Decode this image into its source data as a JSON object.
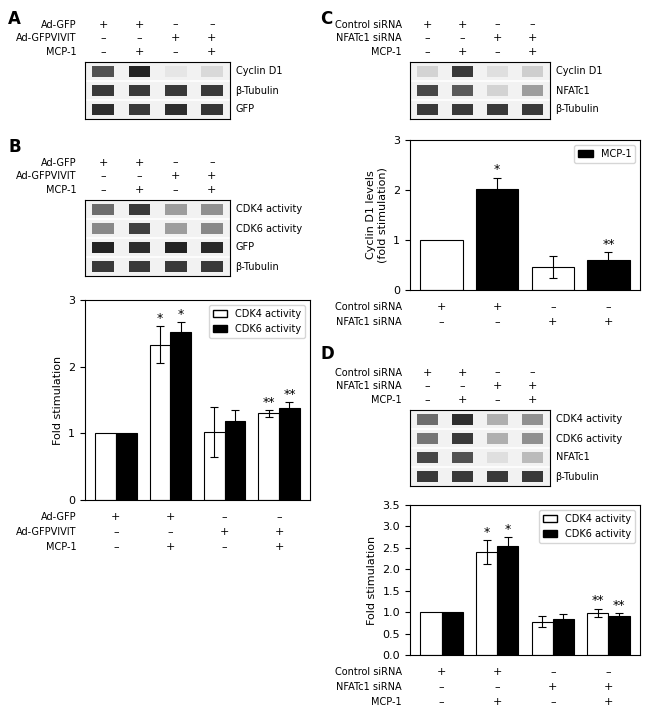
{
  "chart_data": [
    {
      "type": "heatmap",
      "title": "A",
      "tick_labels": false,
      "x_rows": [
        {
          "name": "Ad-GFP",
          "values": [
            "+",
            "+",
            "–",
            "–"
          ]
        },
        {
          "name": "Ad-GFPVIVIT",
          "values": [
            "–",
            "–",
            "+",
            "+"
          ]
        },
        {
          "name": "MCP-1",
          "values": [
            "–",
            "+",
            "–",
            "+"
          ]
        }
      ],
      "rows": [
        "Cyclin D1",
        "β-Tubulin",
        "GFP"
      ],
      "cells": [
        [
          0.75,
          0.88,
          0.18,
          0.25
        ],
        [
          0.82,
          0.82,
          0.82,
          0.82
        ],
        [
          0.85,
          0.82,
          0.85,
          0.83
        ]
      ]
    },
    {
      "type": "heatmap",
      "title": "B",
      "tick_labels": false,
      "x_rows": [
        {
          "name": "Ad-GFP",
          "values": [
            "+",
            "+",
            "–",
            "–"
          ]
        },
        {
          "name": "Ad-GFPVIVIT",
          "values": [
            "–",
            "–",
            "+",
            "+"
          ]
        },
        {
          "name": "MCP-1",
          "values": [
            "–",
            "+",
            "–",
            "+"
          ]
        }
      ],
      "rows": [
        "CDK4 activity",
        "CDK6 activity",
        "GFP",
        "β-Tubulin"
      ],
      "cells": [
        [
          0.65,
          0.82,
          0.48,
          0.52
        ],
        [
          0.55,
          0.8,
          0.48,
          0.55
        ],
        [
          0.88,
          0.85,
          0.88,
          0.86
        ],
        [
          0.82,
          0.82,
          0.82,
          0.82
        ]
      ]
    },
    {
      "type": "bar",
      "ylabel": "Fold stimulation",
      "tick_labels": "y",
      "categories": [
        null,
        null,
        null,
        null
      ],
      "series": [
        {
          "name": "CDK4 activity",
          "color": "white",
          "values": [
            1.0,
            2.33,
            1.02,
            1.3
          ],
          "errors": [
            0.0,
            0.28,
            0.38,
            0.05
          ],
          "significance": [
            null,
            "*",
            null,
            "**"
          ]
        },
        {
          "name": "CDK6 activity",
          "color": "black",
          "values": [
            1.0,
            2.52,
            1.18,
            1.38
          ],
          "errors": [
            0.0,
            0.15,
            0.17,
            0.09
          ],
          "significance": [
            null,
            "*",
            null,
            "**"
          ]
        }
      ],
      "ylim": [
        0,
        3
      ],
      "yticks": [
        0,
        1,
        2,
        3
      ],
      "legend": "upper right",
      "x_rows": [
        {
          "name": "Ad-GFP",
          "values": [
            "+",
            "+",
            "–",
            "–"
          ]
        },
        {
          "name": "Ad-GFPVIVIT",
          "values": [
            "–",
            "–",
            "+",
            "+"
          ]
        },
        {
          "name": "MCP-1",
          "values": [
            "–",
            "+",
            "–",
            "+"
          ]
        }
      ]
    },
    {
      "type": "heatmap",
      "title": "C",
      "tick_labels": false,
      "x_rows": [
        {
          "name": "Control siRNA",
          "values": [
            "+",
            "+",
            "–",
            "–"
          ]
        },
        {
          "name": "NFATc1 siRNA",
          "values": [
            "–",
            "–",
            "+",
            "+"
          ]
        },
        {
          "name": "MCP-1",
          "values": [
            "–",
            "+",
            "–",
            "+"
          ]
        }
      ],
      "rows": [
        "Cyclin D1",
        "NFATc1",
        "β-Tubulin"
      ],
      "cells": [
        [
          0.28,
          0.82,
          0.22,
          0.3
        ],
        [
          0.78,
          0.72,
          0.28,
          0.48
        ],
        [
          0.82,
          0.82,
          0.82,
          0.82
        ]
      ]
    },
    {
      "type": "bar",
      "ylabel": "Cyclin D1 levels\n(fold stimulation)",
      "tick_labels": "y",
      "categories": [
        null,
        null,
        null,
        null
      ],
      "series": [
        {
          "colors": [
            "white",
            "black",
            "white",
            "black"
          ],
          "values": [
            1.0,
            2.03,
            0.45,
            0.6
          ],
          "errors": [
            0.0,
            0.22,
            0.22,
            0.15
          ],
          "significance": [
            null,
            "*",
            null,
            "**"
          ]
        }
      ],
      "legend_entries": [
        {
          "name": "MCP-1",
          "color": "black"
        }
      ],
      "ylim": [
        0,
        3
      ],
      "yticks": [
        0,
        1,
        2,
        3
      ],
      "legend": "upper right",
      "x_rows": [
        {
          "name": "Control siRNA",
          "values": [
            "+",
            "+",
            "–",
            "–"
          ]
        },
        {
          "name": "NFATc1 siRNA",
          "values": [
            "–",
            "–",
            "+",
            "+"
          ]
        }
      ]
    },
    {
      "type": "heatmap",
      "title": "D",
      "tick_labels": false,
      "x_rows": [
        {
          "name": "Control siRNA",
          "values": [
            "+",
            "+",
            "–",
            "–"
          ]
        },
        {
          "name": "NFATc1 siRNA",
          "values": [
            "–",
            "–",
            "+",
            "+"
          ]
        },
        {
          "name": "MCP-1",
          "values": [
            "–",
            "+",
            "–",
            "+"
          ]
        }
      ],
      "rows": [
        "CDK4 activity",
        "CDK6 activity",
        "NFATc1",
        "β-Tubulin"
      ],
      "cells": [
        [
          0.65,
          0.85,
          0.42,
          0.52
        ],
        [
          0.62,
          0.82,
          0.42,
          0.52
        ],
        [
          0.78,
          0.75,
          0.22,
          0.38
        ],
        [
          0.82,
          0.82,
          0.82,
          0.82
        ]
      ]
    },
    {
      "type": "bar",
      "ylabel": "Fold stimulation",
      "tick_labels": "y",
      "categories": [
        null,
        null,
        null,
        null
      ],
      "series": [
        {
          "name": "CDK4 activity",
          "color": "white",
          "values": [
            1.0,
            2.4,
            0.78,
            0.98
          ],
          "errors": [
            0.0,
            0.28,
            0.12,
            0.1
          ],
          "significance": [
            null,
            "*",
            null,
            "**"
          ]
        },
        {
          "name": "CDK6 activity",
          "color": "black",
          "values": [
            1.0,
            2.55,
            0.85,
            0.9
          ],
          "errors": [
            0.0,
            0.2,
            0.1,
            0.08
          ],
          "significance": [
            null,
            "*",
            null,
            "**"
          ]
        }
      ],
      "ylim": [
        0,
        3.5
      ],
      "yticks": [
        {
          "value": 0,
          "label": "0.0"
        },
        0.5,
        {
          "value": 1,
          "label": "1.0"
        },
        1.5,
        {
          "value": 2,
          "label": "2.0"
        },
        2.5,
        {
          "value": 3,
          "label": "3.0"
        },
        3.5
      ],
      "legend": "upper right",
      "x_rows": [
        {
          "name": "Control siRNA",
          "values": [
            "+",
            "+",
            "–",
            "–"
          ]
        },
        {
          "name": "NFATc1 siRNA",
          "values": [
            "–",
            "–",
            "+",
            "+"
          ]
        },
        {
          "name": "MCP-1",
          "values": [
            "–",
            "+",
            "–",
            "+"
          ]
        }
      ]
    }
  ]
}
